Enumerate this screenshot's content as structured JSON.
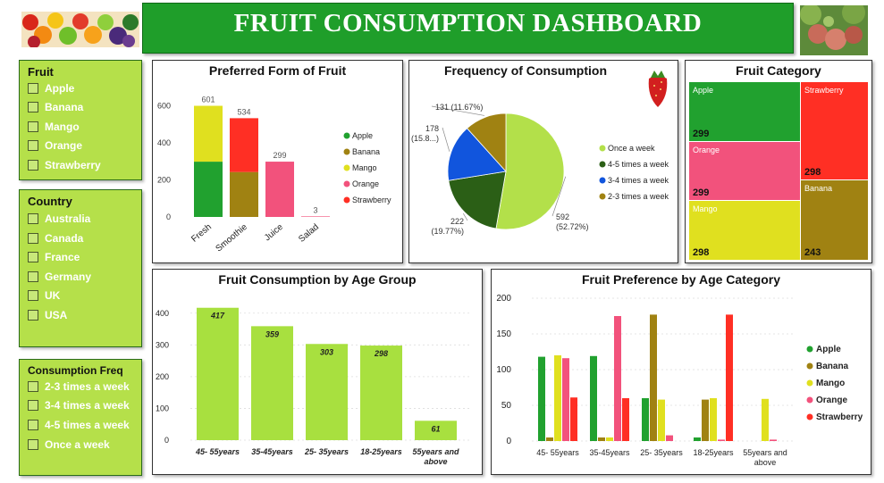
{
  "header": {
    "title": "FRUIT CONSUMPTION DASHBOARD"
  },
  "slicers": {
    "fruit": {
      "title": "Fruit",
      "items": [
        "Apple",
        "Banana",
        "Mango",
        "Orange",
        "Strawberry"
      ]
    },
    "country": {
      "title": "Country",
      "items": [
        "Australia",
        "Canada",
        "France",
        "Germany",
        "UK",
        "USA"
      ]
    },
    "freq": {
      "title": "Consumption Freq",
      "items": [
        "2-3 times a week",
        "3-4 times a week",
        "4-5 times a week",
        "Once a week"
      ]
    }
  },
  "colors": {
    "Apple": "#21a12f",
    "Banana": "#a08212",
    "Mango": "#e0e01f",
    "Orange": "#f2527c",
    "Strawberry": "#ff2f24",
    "age_bar": "#a8e03f",
    "pie_once": "#b3e04a",
    "pie_45": "#2b5f16",
    "pie_34": "#1155dd",
    "pie_23": "#a08212"
  },
  "chart_data": [
    {
      "id": "preferred_form",
      "type": "bar",
      "title": "Preferred Form of Fruit",
      "stacked": true,
      "categories": [
        "Fresh",
        "Smoothie",
        "Juice",
        "Salad"
      ],
      "totals": [
        601,
        534,
        299,
        3
      ],
      "ylim": [
        0,
        700
      ],
      "yticks": [
        0,
        200,
        400,
        600
      ],
      "legend": [
        "Apple",
        "Banana",
        "Mango",
        "Orange",
        "Strawberry"
      ],
      "legend_position": "right",
      "series": [
        {
          "name": "Apple",
          "values": [
            299,
            0,
            0,
            0
          ]
        },
        {
          "name": "Banana",
          "values": [
            0,
            243,
            0,
            0
          ]
        },
        {
          "name": "Mango",
          "values": [
            302,
            0,
            0,
            0
          ]
        },
        {
          "name": "Orange",
          "values": [
            0,
            0,
            299,
            3
          ]
        },
        {
          "name": "Strawberry",
          "values": [
            0,
            291,
            0,
            0
          ]
        }
      ]
    },
    {
      "id": "frequency",
      "type": "pie",
      "title": "Frequency of Consumption",
      "legend_position": "right",
      "slices": [
        {
          "name": "Once a week",
          "value": 592,
          "label": "592\n(52.72%)"
        },
        {
          "name": "4-5 times a week",
          "value": 222,
          "label": "222\n(19.77%)"
        },
        {
          "name": "3-4 times a week",
          "value": 178,
          "label": "178\n(15.8...)"
        },
        {
          "name": "2-3 times a week",
          "value": 131,
          "label": "131 (11.67%)"
        }
      ]
    },
    {
      "id": "category",
      "type": "treemap",
      "title": "Fruit Category",
      "items": [
        {
          "name": "Apple",
          "value": 299
        },
        {
          "name": "Strawberry",
          "value": 298
        },
        {
          "name": "Orange",
          "value": 299
        },
        {
          "name": "Banana",
          "value": 243
        },
        {
          "name": "Mango",
          "value": 298
        }
      ]
    },
    {
      "id": "age_group",
      "type": "bar",
      "title": "Fruit Consumption by Age Group",
      "categories": [
        "45- 55years",
        "35-45years",
        "25- 35years",
        "18-25years",
        "55years and above"
      ],
      "values": [
        417,
        359,
        303,
        298,
        61
      ],
      "ylim": [
        0,
        450
      ],
      "yticks": [
        0,
        100,
        200,
        300,
        400
      ]
    },
    {
      "id": "age_category",
      "type": "bar",
      "title": "Fruit Preference by Age Category",
      "categories": [
        "45- 55years",
        "35-45years",
        "25- 35years",
        "18-25years",
        "55years and above"
      ],
      "ylim": [
        0,
        200
      ],
      "yticks": [
        0,
        50,
        100,
        150,
        200
      ],
      "legend_position": "right",
      "series": [
        {
          "name": "Apple",
          "values": [
            118,
            119,
            60,
            5,
            0
          ]
        },
        {
          "name": "Banana",
          "values": [
            5,
            5,
            177,
            58,
            0
          ]
        },
        {
          "name": "Mango",
          "values": [
            120,
            5,
            58,
            60,
            59
          ]
        },
        {
          "name": "Orange",
          "values": [
            116,
            175,
            8,
            2,
            2
          ]
        },
        {
          "name": "Strawberry",
          "values": [
            61,
            60,
            0,
            177,
            0
          ]
        }
      ]
    }
  ]
}
